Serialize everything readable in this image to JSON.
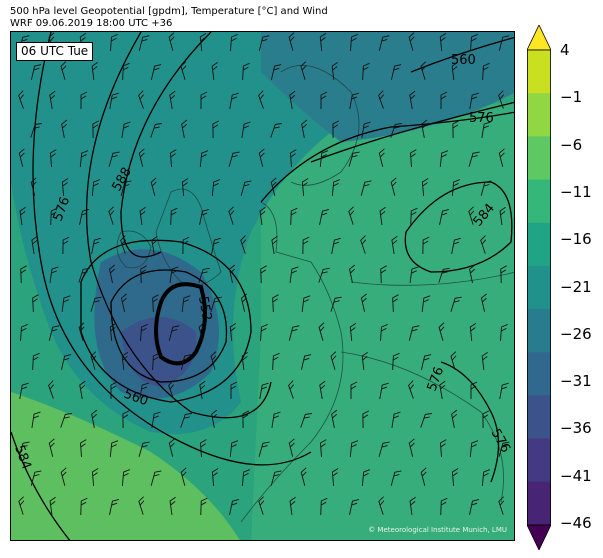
{
  "header": {
    "line1": "500 hPa level Geopotential [gpdm], Temperature [°C] and Wind",
    "line2": "WRF 09.06.2019 18:00 UTC +36"
  },
  "time_label": "06 UTC Tue",
  "copyright": "© Meteorological Institute Munich, LMU",
  "contour_labels": [
    "560",
    "576",
    "588",
    "576",
    "552",
    "560",
    "584",
    "584",
    "576",
    "576"
  ],
  "colorbar": {
    "ticks": [
      "4",
      "−1",
      "−6",
      "−11",
      "−16",
      "−21",
      "−26",
      "−31",
      "−36",
      "−41",
      "−46"
    ],
    "colors": [
      "#fde725",
      "#c8e020",
      "#90d743",
      "#5ec962",
      "#35b779",
      "#20a486",
      "#21918c",
      "#287c8e",
      "#31688e",
      "#3b528b",
      "#443983",
      "#482475",
      "#440154"
    ]
  }
}
